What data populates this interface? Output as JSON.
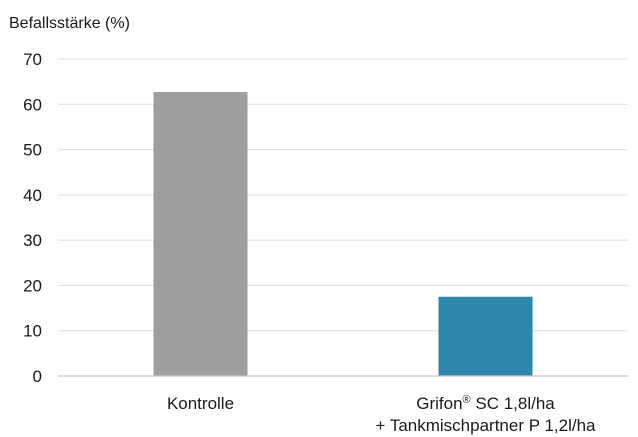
{
  "chart_data": {
    "type": "bar",
    "ylabel": "Befallsstärke (%)",
    "xlabel": "",
    "ylim": [
      0,
      70
    ],
    "yticks": [
      0,
      10,
      20,
      30,
      40,
      50,
      60,
      70
    ],
    "ytick_labels": [
      "0",
      "10",
      "20",
      "30",
      "40",
      "50",
      "60",
      "70"
    ],
    "categories": [
      {
        "lines": [
          "Kontrolle"
        ],
        "sup": ""
      },
      {
        "lines": [
          "Grifon",
          "SC 1,8l/ha",
          "+ Tankmischpartner P 1,2l/ha"
        ],
        "sup": "®"
      }
    ],
    "values": [
      62.7,
      17.5
    ],
    "colors": [
      "#9d9e9d",
      "#2e86ab"
    ],
    "grid": true
  }
}
